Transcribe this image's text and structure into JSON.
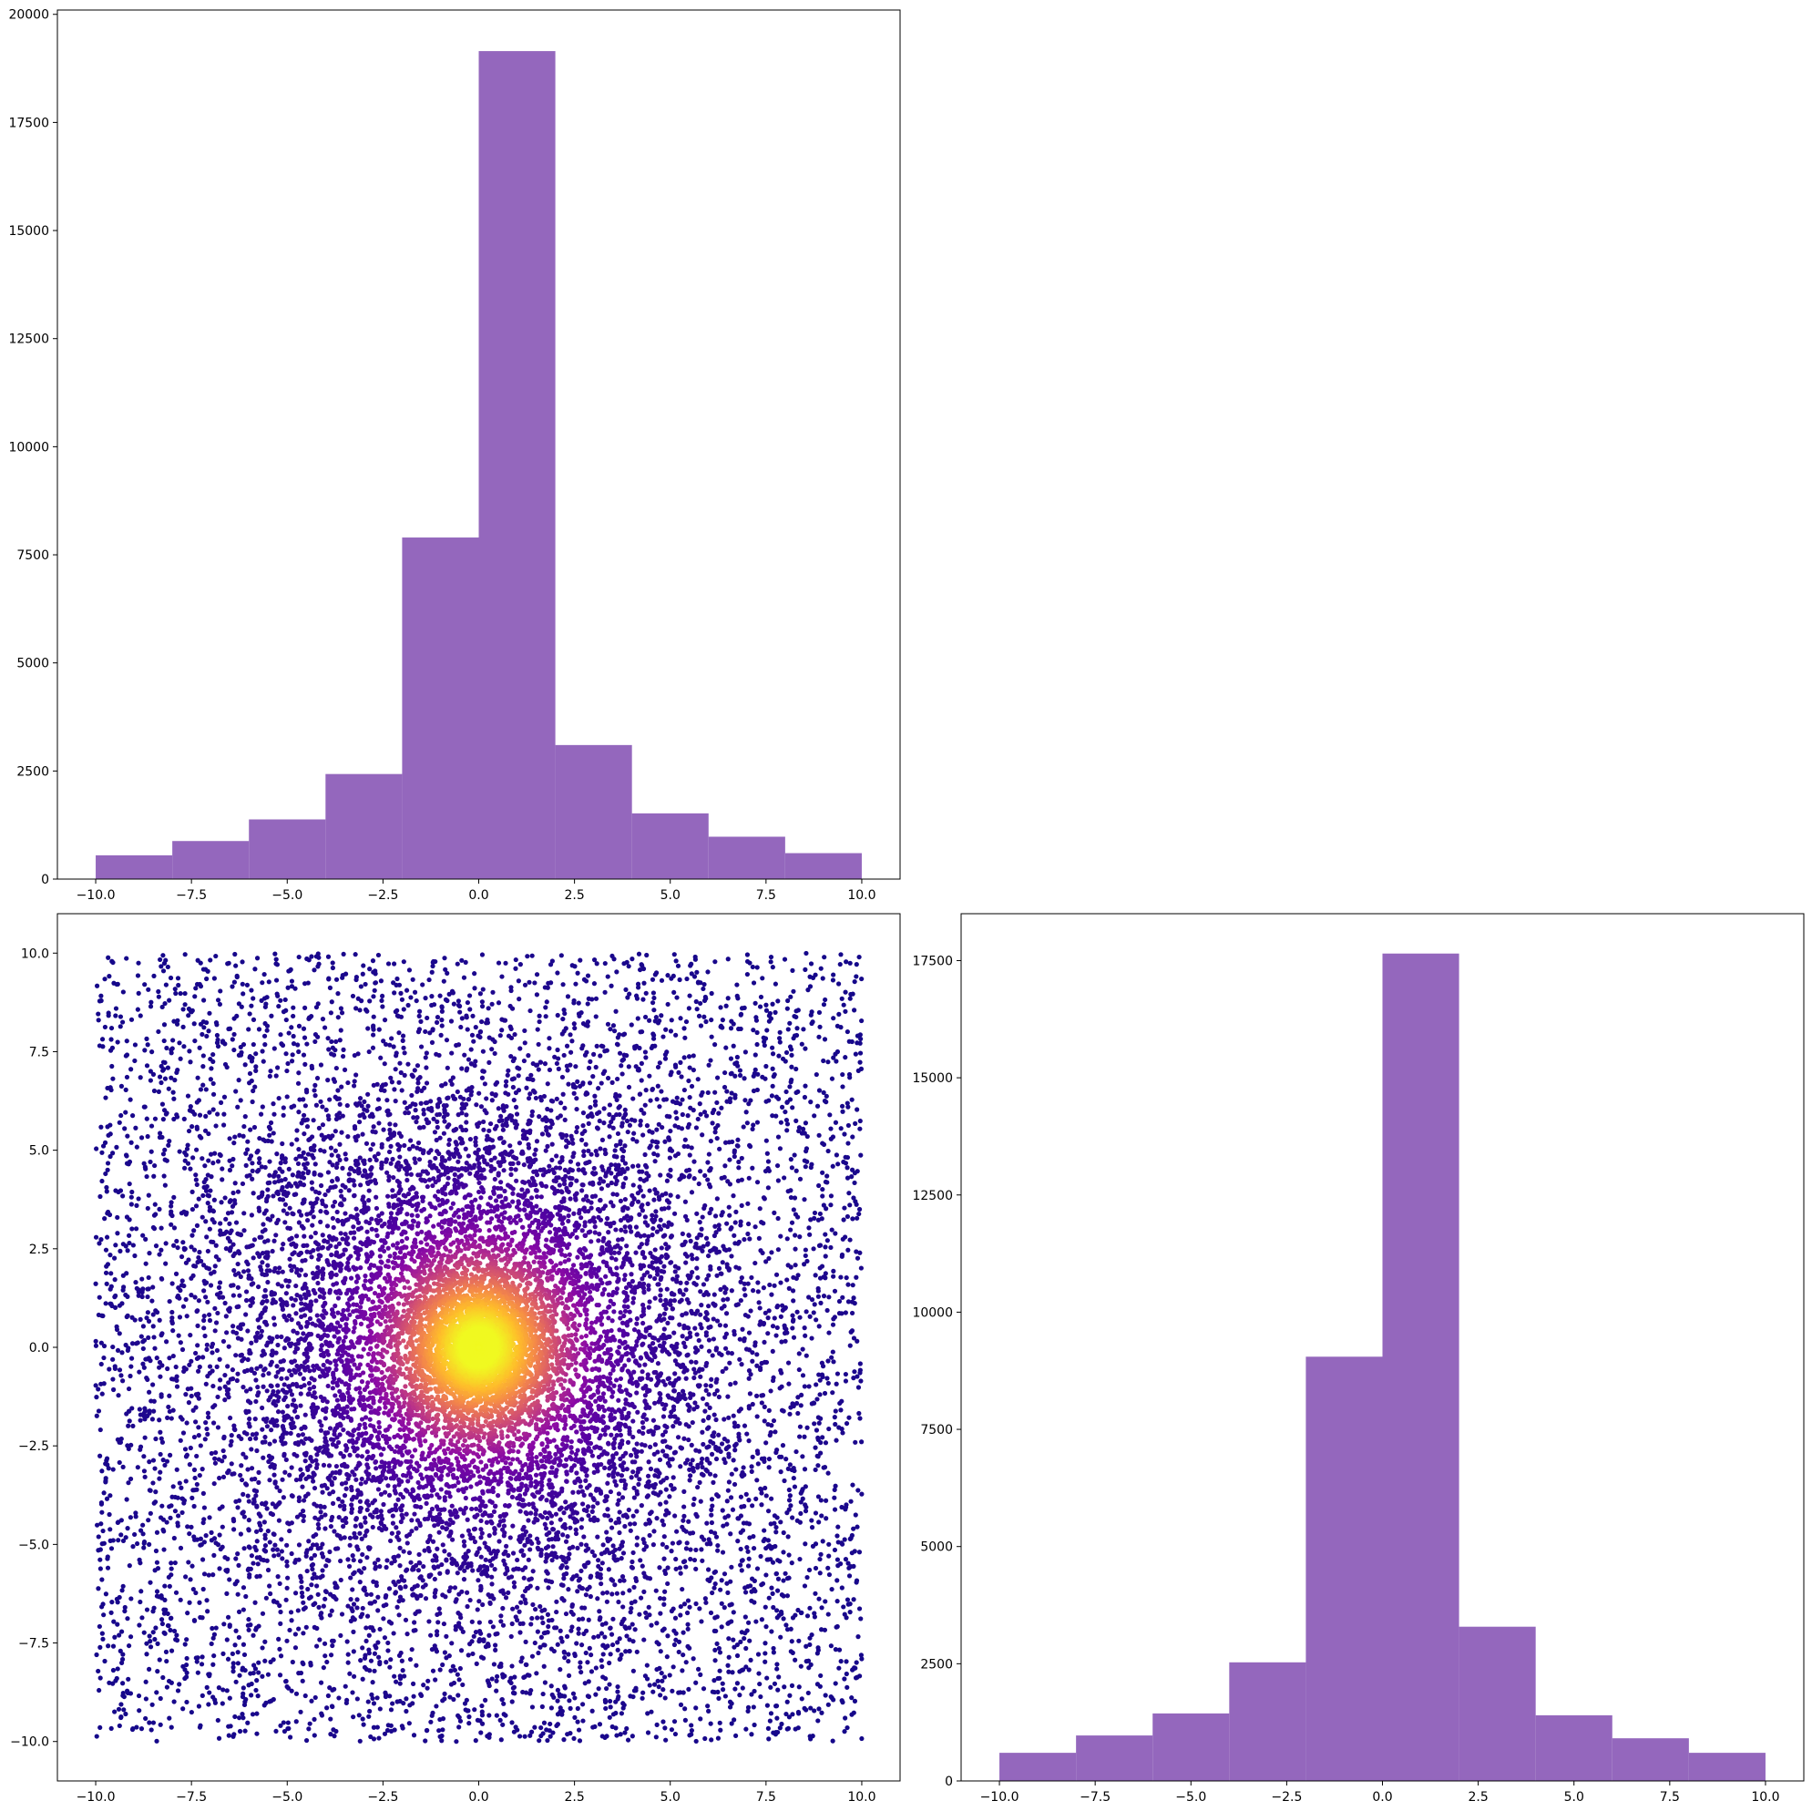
{
  "colors": {
    "bar": "#9467bd",
    "axes": "#000000",
    "background": "#ffffff",
    "scatter_colormap": "plasma"
  },
  "chart_data": [
    {
      "id": "top-left",
      "type": "bar",
      "subtype": "histogram",
      "title": "",
      "xlabel": "",
      "ylabel": "",
      "bin_edges": [
        -10,
        -8,
        -6,
        -4,
        -2,
        0,
        2,
        4,
        6,
        8,
        10
      ],
      "values": [
        550,
        880,
        1380,
        2430,
        7900,
        19150,
        3100,
        1520,
        980,
        600
      ],
      "xlim": [
        -11,
        11
      ],
      "ylim": [
        0,
        20100
      ],
      "xticks": [
        -10.0,
        -7.5,
        -5.0,
        -2.5,
        0.0,
        2.5,
        5.0,
        7.5,
        10.0
      ],
      "xtick_labels": [
        "−10.0",
        "−7.5",
        "−5.0",
        "−2.5",
        "0.0",
        "2.5",
        "5.0",
        "7.5",
        "10.0"
      ],
      "yticks": [
        0,
        2500,
        5000,
        7500,
        10000,
        12500,
        15000,
        17500,
        20000
      ],
      "ytick_labels": [
        "0",
        "2500",
        "5000",
        "7500",
        "10000",
        "12500",
        "15000",
        "17500",
        "20000"
      ],
      "grid": false
    },
    {
      "id": "bottom-left",
      "type": "scatter",
      "title": "",
      "xlabel": "",
      "ylabel": "",
      "distribution": "points uniform over the square [-10, 10] x [-10, 10] with a dense concentration around (0, 0); color encodes local density (plasma colormap, yellow at center, dark blue at edges)",
      "center": [
        0,
        0
      ],
      "xlim": [
        -11,
        11
      ],
      "ylim": [
        -11,
        11
      ],
      "xticks": [
        -10.0,
        -7.5,
        -5.0,
        -2.5,
        0.0,
        2.5,
        5.0,
        7.5,
        10.0
      ],
      "xtick_labels": [
        "−10.0",
        "−7.5",
        "−5.0",
        "−2.5",
        "0.0",
        "2.5",
        "5.0",
        "7.5",
        "10.0"
      ],
      "yticks": [
        -10.0,
        -7.5,
        -5.0,
        -2.5,
        0.0,
        2.5,
        5.0,
        7.5,
        10.0
      ],
      "ytick_labels": [
        "−10.0",
        "−7.5",
        "−5.0",
        "−2.5",
        "0.0",
        "2.5",
        "5.0",
        "7.5",
        "10.0"
      ],
      "grid": false
    },
    {
      "id": "bottom-right",
      "type": "bar",
      "subtype": "histogram",
      "title": "",
      "xlabel": "",
      "ylabel": "",
      "bin_edges": [
        -10,
        -8,
        -6,
        -4,
        -2,
        0,
        2,
        4,
        6,
        8,
        10
      ],
      "values": [
        600,
        970,
        1440,
        2530,
        9050,
        17650,
        3290,
        1400,
        910,
        600
      ],
      "xlim": [
        -11,
        11
      ],
      "ylim": [
        0,
        18500
      ],
      "xticks": [
        -10.0,
        -7.5,
        -5.0,
        -2.5,
        0.0,
        2.5,
        5.0,
        7.5,
        10.0
      ],
      "xtick_labels": [
        "−10.0",
        "−7.5",
        "−5.0",
        "−2.5",
        "0.0",
        "2.5",
        "5.0",
        "7.5",
        "10.0"
      ],
      "yticks": [
        0,
        2500,
        5000,
        7500,
        10000,
        12500,
        15000,
        17500
      ],
      "ytick_labels": [
        "0",
        "2500",
        "5000",
        "7500",
        "10000",
        "12500",
        "15000",
        "17500"
      ],
      "grid": false
    }
  ]
}
